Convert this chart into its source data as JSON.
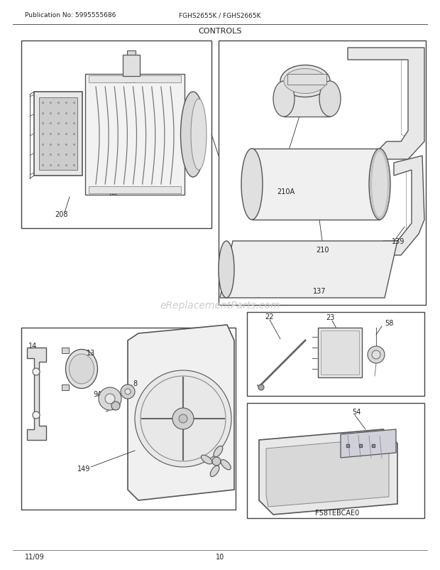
{
  "title": "CONTROLS",
  "pub_no": "Publication No: 5995555686",
  "model": "FGHS2655K / FGHS2665K",
  "date": "11/09",
  "page": "10",
  "watermark": "eReplacementParts.com",
  "bg_color": "#ffffff",
  "fig_w": 6.2,
  "fig_h": 8.03,
  "dpi": 100
}
